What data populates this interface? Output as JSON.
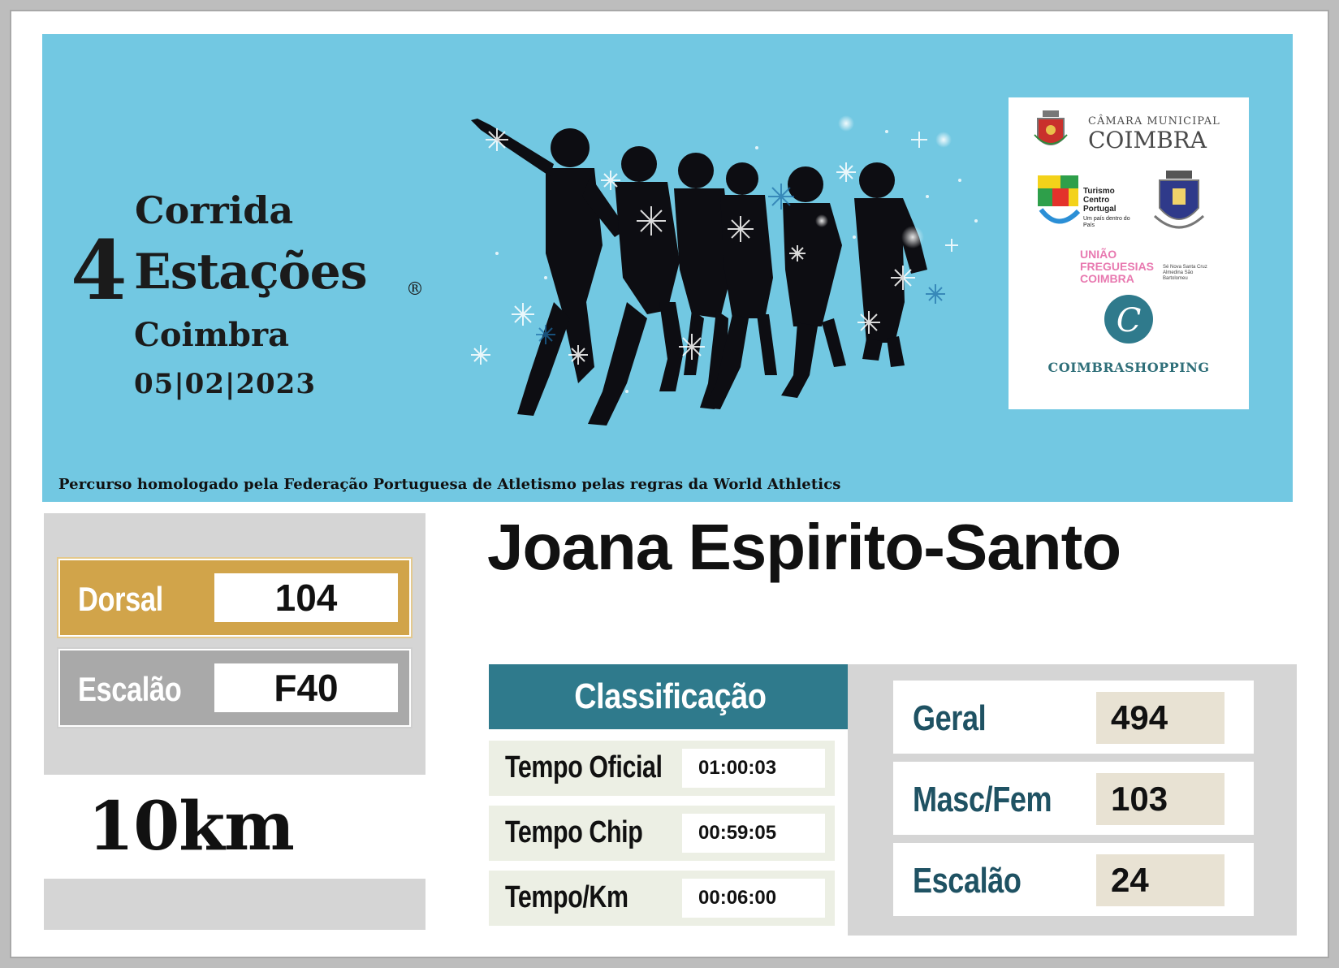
{
  "event": {
    "title_line1": "Corrida",
    "title_number": "4",
    "title_line2": "Estações",
    "registered_mark": "®",
    "city": "Coimbra",
    "date": "05|02|2023",
    "homologation": "Percurso homologado pela Federação Portuguesa de Atletismo pelas regras da World Athletics"
  },
  "sponsors": {
    "camara_line1": "CÂMARA MUNICIPAL",
    "camara_line2": "COIMBRA",
    "turismo": "Turismo Centro Portugal",
    "turismo_tagline": "Um país dentro do País",
    "uniao": "UNIÃO FREGUESIAS COIMBRA",
    "uniao_parishes": "Sé Nova Santa Cruz Almedina São Bartolomeu",
    "shopping_initial": "C",
    "shopping": "COIMBRASHOPPING"
  },
  "athlete": {
    "name": "Joana Espirito-Santo",
    "dorsal_label": "Dorsal",
    "dorsal": "104",
    "escalao_label": "Escalão",
    "escalao": "F40",
    "distance": "10km"
  },
  "classification": {
    "header": "Classificação",
    "times": [
      {
        "label": "Tempo Oficial",
        "value": "01:00:03"
      },
      {
        "label": "Tempo Chip",
        "value": "00:59:05"
      },
      {
        "label": "Tempo/Km",
        "value": "00:06:00"
      }
    ],
    "ranks": [
      {
        "label": "Geral",
        "value": "494"
      },
      {
        "label": "Masc/Fem",
        "value": "103"
      },
      {
        "label": "Escalão",
        "value": "24"
      }
    ]
  },
  "colors": {
    "banner": "#72c8e2",
    "dorsal_gold": "#d1a44a",
    "escalao_gray": "#a9a9a9",
    "header_teal": "#2f7a8c",
    "rank_text": "#1f5263"
  }
}
